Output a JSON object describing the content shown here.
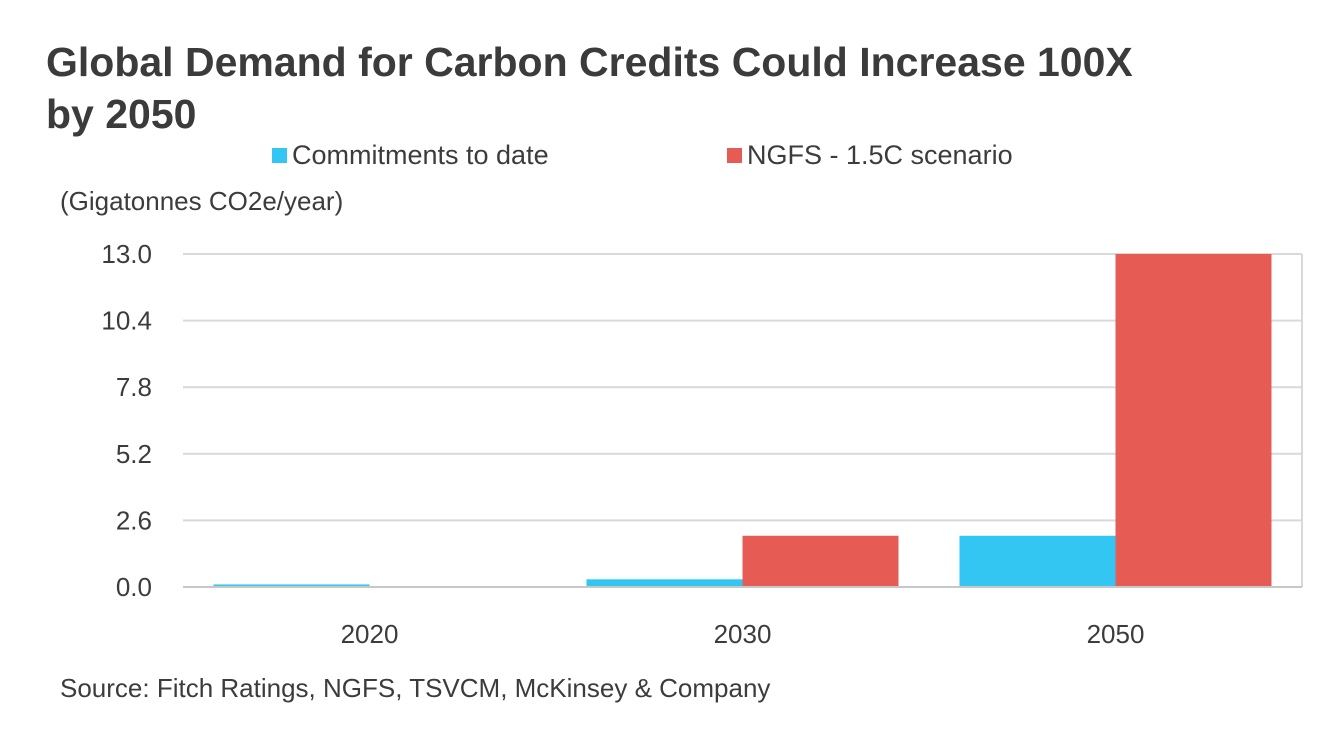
{
  "chart_data": {
    "type": "bar",
    "title": "Global Demand for Carbon Credits Could Increase 100X by 2050",
    "title_lines": [
      "Global Demand for Carbon Credits Could Increase 100X",
      "by 2050"
    ],
    "ylabel": "(Gigatonnes CO2e/year)",
    "xlabel": "",
    "categories": [
      "2020",
      "2030",
      "2050"
    ],
    "series": [
      {
        "name": "Commitments to date",
        "color": "#33c6f2",
        "values": [
          0.1,
          0.3,
          2.0
        ]
      },
      {
        "name": "NGFS - 1.5C scenario",
        "color": "#e65c55",
        "values": [
          0.0,
          2.0,
          13.0
        ]
      }
    ],
    "ylim": [
      0,
      13
    ],
    "yticks": [
      "0.0",
      "2.6",
      "5.2",
      "7.8",
      "10.4",
      "13.0"
    ],
    "grid": true,
    "legend_position": "top",
    "source": "Source: Fitch Ratings, NGFS, TSVCM, McKinsey & Company"
  }
}
